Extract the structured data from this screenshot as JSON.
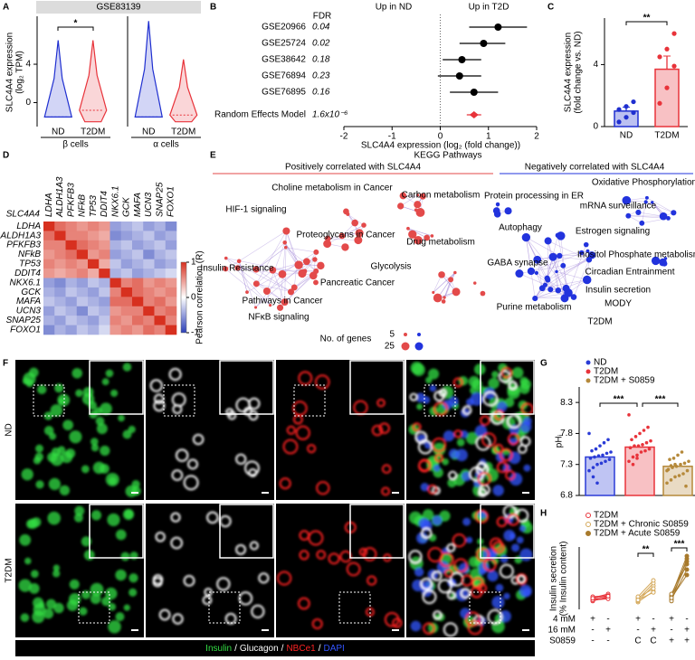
{
  "chart_data": [
    {
      "type": "violin",
      "label": "A",
      "title": "GSE83139",
      "ylabel": [
        "SLC4A4 expression",
        "(log₂ TPM)"
      ],
      "ylim": [
        -2.5,
        9
      ],
      "yticks": [
        0,
        4
      ],
      "groups": [
        {
          "name": "β cells",
          "categories": [
            "ND",
            "T2DM"
          ],
          "colors": [
            "#1f2fd0",
            "#e8333a"
          ],
          "min": [
            -1.5,
            -2
          ],
          "median": [
            -1.5,
            -0.8
          ],
          "max": [
            6.5,
            6.5
          ]
        },
        {
          "name": "α cells",
          "categories": [
            "ND",
            "T2DM"
          ],
          "colors": [
            "#1f2fd0",
            "#e8333a"
          ],
          "min": [
            -1.5,
            -2
          ],
          "median": [
            -1.5,
            -1.3
          ],
          "max": [
            8.5,
            4.5
          ]
        }
      ],
      "annotations": [
        "*"
      ]
    },
    {
      "type": "forest",
      "label": "B",
      "categories": [
        "GSE20966",
        "GSE25724",
        "GSE38642",
        "GSE76894",
        "GSE76895",
        "Random Effects Model"
      ],
      "values": [
        1.2,
        0.9,
        0.45,
        0.4,
        0.7,
        0.7
      ],
      "ci_low": [
        0.6,
        0.4,
        0.05,
        -0.05,
        0.2,
        0.55
      ],
      "ci_high": [
        1.8,
        1.35,
        0.85,
        0.85,
        1.2,
        0.85
      ],
      "fdr_header": "FDR",
      "fdr": [
        "0.04",
        "0.02",
        "0.18",
        "0.23",
        "0.16",
        "1.6x10⁻⁶"
      ],
      "color": "#000000",
      "summary_color": "#e8333a",
      "left_header": "Up in ND",
      "left_color": "#1f2fd0",
      "right_header": "Up in T2D",
      "right_color": "#e8333a",
      "xlim": [
        -2,
        2
      ],
      "xticks": [
        -2,
        -1,
        0,
        1,
        2
      ],
      "xlabel": "SLC4A4 expression (log₂ (fold change))"
    },
    {
      "type": "bar",
      "label": "C",
      "categories": [
        "ND",
        "T2DM"
      ],
      "values": [
        1,
        3.7
      ],
      "errors": [
        0.25,
        0.85
      ],
      "points": [
        [
          0.3,
          0.6,
          0.9,
          1.1,
          1.3,
          1.6
        ],
        [
          1.5,
          2.5,
          3.9,
          4.5,
          5.0,
          6.0
        ]
      ],
      "colors": [
        "#1f2fd0",
        "#e8333a"
      ],
      "ylim": [
        0,
        7
      ],
      "yticks": [
        0,
        4
      ],
      "ylabel": [
        "SLC4A4 expression",
        "(fold change vs. ND)"
      ],
      "annotations": [
        "**"
      ]
    },
    {
      "type": "heatmap",
      "label": "D",
      "row_header": "SLC4A4",
      "genes": [
        "LDHA",
        "ALDH1A3",
        "PFKFB3",
        "NFkB",
        "TP53",
        "DDIT4",
        "NKX6.1",
        "GCK",
        "MAFA",
        "UCN3",
        "SNAP25",
        "FOXO1"
      ],
      "values": [
        [
          1,
          0.7,
          0.6,
          0.5,
          0.6,
          0.5,
          -0.5,
          -0.4,
          -0.3,
          -0.5,
          -0.4,
          -0.6
        ],
        [
          0.7,
          1,
          0.6,
          0.6,
          0.5,
          0.4,
          -0.6,
          -0.5,
          -0.4,
          -0.3,
          -0.5,
          -0.4
        ],
        [
          0.6,
          0.6,
          1,
          0.7,
          0.6,
          0.5,
          -0.4,
          -0.3,
          -0.5,
          -0.4,
          -0.3,
          -0.5
        ],
        [
          0.5,
          0.6,
          0.7,
          1,
          0.5,
          0.6,
          -0.5,
          -0.4,
          -0.3,
          -0.6,
          -0.4,
          -0.3
        ],
        [
          0.6,
          0.5,
          0.6,
          0.5,
          1,
          0.4,
          -0.3,
          -0.5,
          -0.4,
          -0.3,
          -0.5,
          -0.4
        ],
        [
          0.5,
          0.4,
          0.5,
          0.6,
          0.4,
          1,
          -0.4,
          -0.3,
          -0.5,
          -0.4,
          -0.3,
          -0.2
        ],
        [
          -0.5,
          -0.6,
          -0.4,
          -0.5,
          -0.3,
          -0.4,
          1,
          0.6,
          0.7,
          0.5,
          0.6,
          0.5
        ],
        [
          -0.4,
          -0.5,
          -0.3,
          -0.4,
          -0.5,
          -0.3,
          0.6,
          1,
          0.7,
          0.6,
          0.5,
          0.6
        ],
        [
          -0.3,
          -0.4,
          -0.5,
          -0.3,
          -0.4,
          -0.5,
          0.7,
          0.7,
          1,
          0.6,
          0.7,
          0.5
        ],
        [
          -0.5,
          -0.3,
          -0.4,
          -0.6,
          -0.3,
          -0.4,
          0.5,
          0.6,
          0.6,
          1,
          0.6,
          0.7
        ],
        [
          -0.4,
          -0.5,
          -0.3,
          -0.4,
          -0.5,
          -0.3,
          0.6,
          0.5,
          0.7,
          0.6,
          1,
          0.6
        ],
        [
          -0.6,
          -0.4,
          -0.5,
          -0.3,
          -0.4,
          -0.2,
          0.5,
          0.6,
          0.5,
          0.7,
          0.6,
          1
        ]
      ],
      "zlim": [
        -1,
        1
      ],
      "zticks": [
        1,
        0,
        -1
      ],
      "zlabel": "Pearson correlation (R)"
    },
    {
      "type": "bar_scatter",
      "label": "G",
      "ylabel": "pHᵢ",
      "ylim": [
        6.8,
        8.55
      ],
      "yticks": [
        6.8,
        7.3,
        7.8,
        8.3
      ],
      "series": [
        {
          "name": "ND",
          "color": "#2a3bd6",
          "mean": 7.42,
          "points": [
            7.2,
            7.25,
            7.3,
            7.32,
            7.35,
            7.38,
            7.4,
            7.42,
            7.44,
            7.45,
            7.48,
            7.5,
            7.52,
            7.55,
            7.6,
            7.65,
            7.7,
            7.8,
            7.1,
            7.0
          ]
        },
        {
          "name": "T2DM",
          "color": "#e8333a",
          "mean": 7.58,
          "points": [
            7.35,
            7.42,
            7.45,
            7.5,
            7.52,
            7.55,
            7.57,
            7.6,
            7.6,
            7.62,
            7.65,
            7.68,
            7.7,
            7.75,
            7.8,
            7.85,
            7.9,
            8.1,
            7.3,
            7.4
          ]
        },
        {
          "name": "T2DM + S0859",
          "color": "#b5893a",
          "mean": 7.27,
          "points": [
            7.0,
            7.05,
            7.1,
            7.12,
            7.15,
            7.2,
            7.22,
            7.25,
            7.27,
            7.3,
            7.32,
            7.35,
            7.38,
            7.4,
            7.45,
            7.5,
            6.95,
            7.2,
            7.28,
            7.3
          ]
        }
      ],
      "annotations": [
        "***",
        "***"
      ]
    },
    {
      "type": "paired",
      "label": "H",
      "ylabel": [
        "Insulin secretion",
        "(% Insulin content)"
      ],
      "ylim": [
        0,
        1
      ],
      "series": [
        {
          "name": "T2DM",
          "color": "#e8333a",
          "low": [
            0.12,
            0.15,
            0.18,
            0.2,
            0.14,
            0.17
          ],
          "high": [
            0.2,
            0.18,
            0.25,
            0.22,
            0.16,
            0.21
          ]
        },
        {
          "name": "T2DM + Chronic S0859",
          "color": "#d4a85a",
          "low": [
            0.1,
            0.12,
            0.15,
            0.18,
            0.2,
            0.14
          ],
          "high": [
            0.3,
            0.4,
            0.45,
            0.35,
            0.5,
            0.28
          ]
        },
        {
          "name": "T2DM + Acute S0859",
          "color": "#a87a2c",
          "low": [
            0.15,
            0.12,
            0.2,
            0.22,
            0.18,
            0.25
          ],
          "high": [
            0.7,
            0.9,
            0.8,
            0.95,
            0.6,
            0.85
          ]
        }
      ],
      "conditions": {
        "rows": [
          "4 mM",
          "16 mM",
          "S0859"
        ],
        "values": [
          [
            "+",
            "-",
            "+",
            "-",
            "+",
            "-"
          ],
          [
            "-",
            "+",
            "-",
            "+",
            "-",
            "+"
          ],
          [
            "-",
            "-",
            "C",
            "C",
            "+",
            "+"
          ]
        ]
      },
      "annotations": [
        "**",
        "***"
      ]
    }
  ],
  "kegg": {
    "label": "E",
    "title": "KEGG Pathways",
    "positive": {
      "header": "Positively correlated with SLC4A4",
      "color": "#e34a4a",
      "nodes": [
        {
          "text": "Choline metabolism in Cancer",
          "highlight": false
        },
        {
          "text": "HIF-1 signaling",
          "highlight": false
        },
        {
          "text": "Carbon metabolism",
          "highlight": true
        },
        {
          "text": "Insulin Resistance",
          "highlight": false
        },
        {
          "text": "Proteoglycans in Cancer",
          "highlight": false
        },
        {
          "text": "Drug metabolism",
          "highlight": false
        },
        {
          "text": "Glycolysis",
          "highlight": true
        },
        {
          "text": "Pancreatic Cancer",
          "highlight": false
        },
        {
          "text": "Pathways in Cancer",
          "highlight": false
        },
        {
          "text": "NFκB signaling",
          "highlight": true
        }
      ]
    },
    "negative": {
      "header": "Negatively correlated with SLC4A4",
      "color": "#2233dd",
      "nodes": [
        {
          "text": "Protein processing in ER",
          "highlight": false
        },
        {
          "text": "Oxidative Phosphorylation",
          "highlight": true
        },
        {
          "text": "mRNA surveillance",
          "highlight": false
        },
        {
          "text": "Autophagy",
          "highlight": false
        },
        {
          "text": "Estrogen signaling",
          "highlight": false
        },
        {
          "text": "Inositol Phosphate metabolism",
          "highlight": false
        },
        {
          "text": "GABA synapse",
          "highlight": false
        },
        {
          "text": "Circadian Entrainment",
          "highlight": false
        },
        {
          "text": "Insulin secretion",
          "highlight": true
        },
        {
          "text": "MODY",
          "highlight": true
        },
        {
          "text": "Purine metabolism",
          "highlight": false
        },
        {
          "text": "T2DM",
          "highlight": true
        }
      ]
    },
    "legend": {
      "title": "No. of genes",
      "sizes": [
        5,
        25
      ]
    }
  },
  "images": {
    "label": "F",
    "rows": [
      "ND",
      "T2DM"
    ],
    "separator": "/",
    "channels": [
      {
        "name": "Insulin",
        "color": "#33dd44"
      },
      {
        "name": "Glucagon",
        "color": "#ffffff"
      },
      {
        "name": "NBCe1",
        "color": "#ff2424"
      },
      {
        "name": "DAPI",
        "color": "#3355ff"
      }
    ]
  }
}
